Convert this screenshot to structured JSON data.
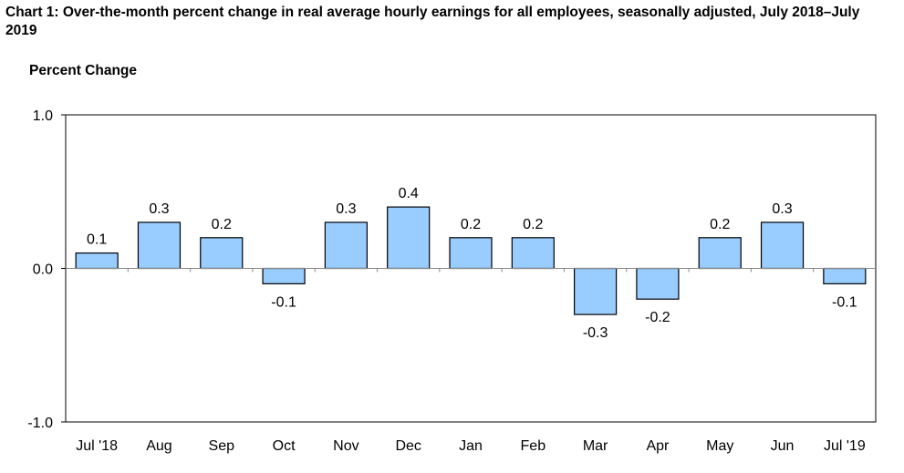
{
  "chart_data": {
    "type": "bar",
    "title": "Chart 1: Over-the-month percent change in real average hourly earnings for all employees, seasonally adjusted, July 2018–July 2019",
    "ylabel": "Percent Change",
    "xlabel": "",
    "categories": [
      "Jul '18",
      "Aug",
      "Sep",
      "Oct",
      "Nov",
      "Dec",
      "Jan",
      "Feb",
      "Mar",
      "Apr",
      "May",
      "Jun",
      "Jul '19"
    ],
    "values": [
      0.1,
      0.3,
      0.2,
      -0.1,
      0.3,
      0.4,
      0.2,
      0.2,
      -0.3,
      -0.2,
      0.2,
      0.3,
      -0.1
    ],
    "data_labels": [
      "0.1",
      "0.3",
      "0.2",
      "-0.1",
      "0.3",
      "0.4",
      "0.2",
      "0.2",
      "-0.3",
      "-0.2",
      "0.2",
      "0.3",
      "-0.1"
    ],
    "ylim": [
      -1.0,
      1.0
    ],
    "yticks": [
      -1.0,
      0.0,
      1.0
    ],
    "ytick_labels": [
      "-1.0",
      "0.0",
      "1.0"
    ],
    "grid": false,
    "legend": "none",
    "colors": {
      "bar_fill": "#99ccff",
      "bar_stroke": "#000000",
      "axis": "#000000"
    }
  }
}
